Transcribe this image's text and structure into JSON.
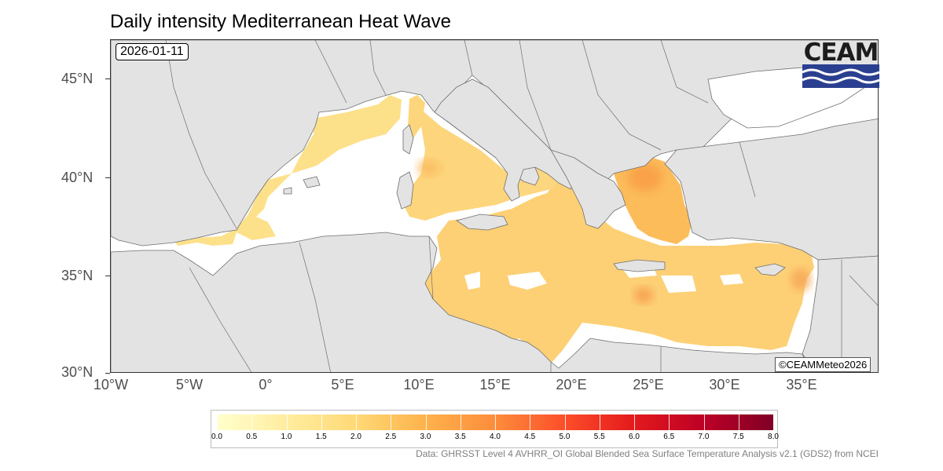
{
  "title": "Daily intensity Mediterranean Heat Wave",
  "date": "2026-01-11",
  "logo": {
    "text": "CEAM",
    "colors": {
      "text": "#1d1d1d",
      "waves": "#2a3f8f"
    }
  },
  "copyright": "©CEAMMeteo2026",
  "axes": {
    "y_ticks": [
      "30°N",
      "35°N",
      "40°N",
      "45°N"
    ],
    "x_ticks": [
      "10°W",
      "5°W",
      "0°",
      "5°E",
      "10°E",
      "15°E",
      "20°E",
      "25°E",
      "30°E",
      "35°E"
    ]
  },
  "legend": {
    "labels": [
      "0.0",
      "0.5",
      "1.0",
      "1.5",
      "2.0",
      "2.5",
      "3.0",
      "3.5",
      "4.0",
      "4.5",
      "5.0",
      "5.5",
      "6.0",
      "6.5",
      "7.0",
      "7.5",
      "8.0"
    ],
    "range": [
      0,
      8
    ],
    "colors": [
      "#ffffcc",
      "#ffeda0",
      "#fed976",
      "#feb24c",
      "#fd8d3c",
      "#fc4e2a",
      "#e31a1c",
      "#bd0026",
      "#800026"
    ]
  },
  "source": "Data: GHRSST Level 4 AVHRR_OI Global Blended Sea Surface Temperature Analysis v2.1 (GDS2) from NCEI",
  "map_colors": {
    "land": "#e3e3e3",
    "border": "#6e6e6e",
    "sea_no_data": "#ffffff"
  }
}
